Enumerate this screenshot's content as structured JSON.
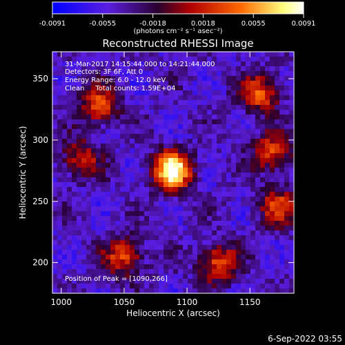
{
  "chart_data": {
    "type": "heatmap",
    "title": "Reconstructed RHESSI Image",
    "xlabel": "Heliocentric X (arcsec)",
    "ylabel": "Heliocentric Y (arcsec)",
    "xlim": [
      993,
      1185
    ],
    "ylim": [
      175,
      372
    ],
    "xticks": [
      1000,
      1050,
      1100,
      1150
    ],
    "yticks": [
      200,
      250,
      300,
      350
    ],
    "colorbar": {
      "range": [
        -0.0091,
        0.0091
      ],
      "tick_labels": [
        "-0.0091",
        "-0.0055",
        "-0.0018",
        "0.0018",
        "0.0055",
        "0.0091"
      ],
      "units": "(photons cm⁻² s⁻¹ asec⁻²)",
      "colors": [
        "#0000ff",
        "#5a1ee0",
        "#2a0030",
        "#b00000",
        "#ff6a00",
        "#ffff80",
        "#ffffff"
      ]
    },
    "annotations": [
      "31-Mar-2017 14:15:44.000 to 14:21:44.000",
      "Detectors: 3F 6F, Att 0",
      "Energy Range: 6.0 - 12.0 keV",
      "Clean     Total counts: 1.59E+04"
    ],
    "peak_label": "Position of Peak = [1090,266]",
    "sources": [
      {
        "x": 1088,
        "y": 275,
        "amp": 1.0
      },
      {
        "x": 1030,
        "y": 328,
        "amp": 0.55
      },
      {
        "x": 1015,
        "y": 285,
        "amp": 0.45
      },
      {
        "x": 1050,
        "y": 205,
        "amp": 0.55
      },
      {
        "x": 1125,
        "y": 200,
        "amp": 0.6
      },
      {
        "x": 1158,
        "y": 338,
        "amp": 0.6
      },
      {
        "x": 1168,
        "y": 290,
        "amp": 0.55
      },
      {
        "x": 1172,
        "y": 245,
        "amp": 0.5
      }
    ]
  },
  "footer_date": "6-Sep-2022 03:55"
}
